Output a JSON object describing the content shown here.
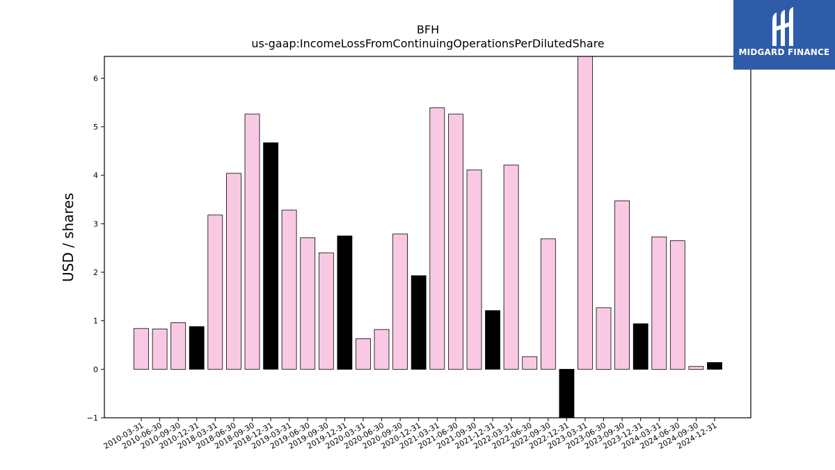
{
  "logo": {
    "text": "MIDGARD FINANCE",
    "bg_color": "#2f5ca8"
  },
  "chart_data": {
    "type": "bar",
    "title": "BFH",
    "subtitle": "us-gaap:IncomeLossFromContinuingOperationsPerDilutedShare",
    "xlabel": "",
    "ylabel": "USD / shares",
    "ylim": [
      -1,
      6.45
    ],
    "yticks": [
      -1,
      0,
      1,
      2,
      3,
      4,
      5,
      6
    ],
    "ytick_labels": [
      "−1",
      "0",
      "1",
      "2",
      "3",
      "4",
      "5",
      "6"
    ],
    "grid": false,
    "colors": {
      "quarter": "#f9c9e3",
      "year_end": "#000000",
      "edge": "#000000"
    },
    "categories": [
      "2010-03-31",
      "2010-06-30",
      "2010-09-30",
      "2010-12-31",
      "2018-03-31",
      "2018-06-30",
      "2018-09-30",
      "2018-12-31",
      "2019-03-31",
      "2019-06-30",
      "2019-09-30",
      "2019-12-31",
      "2020-03-31",
      "2020-06-30",
      "2020-09-30",
      "2020-12-31",
      "2021-03-31",
      "2021-06-30",
      "2021-09-30",
      "2021-12-31",
      "2022-03-31",
      "2022-06-30",
      "2022-09-30",
      "2022-12-31",
      "2023-03-31",
      "2023-06-30",
      "2023-09-30",
      "2023-12-31",
      "2024-03-31",
      "2024-06-30",
      "2024-09-30",
      "2024-12-31"
    ],
    "values": [
      0.84,
      0.83,
      0.96,
      0.88,
      3.18,
      4.04,
      5.26,
      4.67,
      3.28,
      2.71,
      2.4,
      2.75,
      0.63,
      0.82,
      2.79,
      1.93,
      5.39,
      5.26,
      4.11,
      1.21,
      4.21,
      0.26,
      2.69,
      -1.0,
      6.45,
      1.27,
      3.47,
      0.94,
      2.73,
      2.65,
      0.06,
      0.14
    ]
  }
}
